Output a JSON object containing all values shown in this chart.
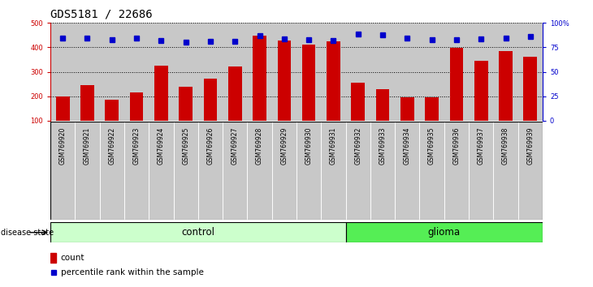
{
  "title": "GDS5181 / 22686",
  "samples": [
    "GSM769920",
    "GSM769921",
    "GSM769922",
    "GSM769923",
    "GSM769924",
    "GSM769925",
    "GSM769926",
    "GSM769927",
    "GSM769928",
    "GSM769929",
    "GSM769930",
    "GSM769931",
    "GSM769932",
    "GSM769933",
    "GSM769934",
    "GSM769935",
    "GSM769936",
    "GSM769937",
    "GSM769938",
    "GSM769939"
  ],
  "bar_values": [
    197,
    244,
    184,
    215,
    325,
    240,
    271,
    320,
    447,
    428,
    412,
    424,
    255,
    229,
    194,
    194,
    398,
    344,
    385,
    362
  ],
  "dot_values_left_axis": [
    437,
    438,
    432,
    438,
    427,
    421,
    424,
    424,
    449,
    436,
    432,
    427,
    453,
    451,
    437,
    430,
    432,
    434,
    437,
    445
  ],
  "bar_color": "#cc0000",
  "dot_color": "#0000cc",
  "ylim_left": [
    100,
    500
  ],
  "ylim_right": [
    0,
    100
  ],
  "yticks_left": [
    100,
    200,
    300,
    400,
    500
  ],
  "yticks_right": [
    0,
    25,
    50,
    75,
    100
  ],
  "ytick_labels_right": [
    "0",
    "25",
    "50",
    "75",
    "100%"
  ],
  "n_control": 12,
  "control_label": "control",
  "glioma_label": "glioma",
  "disease_state_label": "disease state",
  "legend_count": "count",
  "legend_percentile": "percentile rank within the sample",
  "bar_bg_color": "#c8c8c8",
  "control_bg": "#ccffcc",
  "glioma_bg": "#55ee55",
  "title_fontsize": 10,
  "tick_fontsize": 6,
  "label_fontsize": 8
}
